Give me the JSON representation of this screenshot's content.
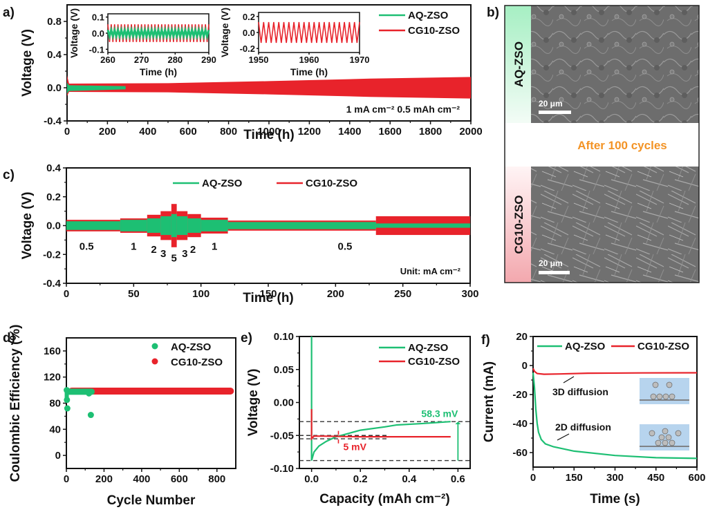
{
  "colors": {
    "aq": "#1dbf73",
    "cg": "#e8232b",
    "orange": "#f39325",
    "axis": "#111111",
    "dash": "#333333"
  },
  "chart_data": [
    {
      "id": "a",
      "panel_label": "a)",
      "type": "line",
      "title": "",
      "xlabel": "Time (h)",
      "ylabel": "Voltage (V)",
      "xlim": [
        0,
        2000
      ],
      "ylim": [
        -0.4,
        1.0
      ],
      "xticks": [
        "0",
        "200",
        "400",
        "600",
        "800",
        "1000",
        "1200",
        "1400",
        "1600",
        "1800",
        "2000"
      ],
      "yticks": [
        "-0.4",
        "0.0",
        "0.4",
        "0.8"
      ],
      "annotation": "1 mA cm⁻²  0.5 mAh cm⁻²",
      "legend": [
        "AQ-ZSO",
        "CG10-ZSO"
      ],
      "legend_position": "top-right",
      "series": [
        {
          "name": "AQ-ZSO",
          "envelope": [
            {
              "x": 0,
              "hi": 0.06,
              "lo": -0.07
            },
            {
              "x": 10,
              "hi": 0.03,
              "lo": -0.04
            },
            {
              "x": 280,
              "hi": 0.02,
              "lo": -0.02
            },
            {
              "x": 290,
              "hi": 0.02,
              "lo": -0.02
            }
          ]
        },
        {
          "name": "CG10-ZSO",
          "envelope": [
            {
              "x": 0,
              "hi": 0.15,
              "lo": -0.1
            },
            {
              "x": 10,
              "hi": 0.05,
              "lo": -0.05
            },
            {
              "x": 500,
              "hi": 0.055,
              "lo": -0.055
            },
            {
              "x": 1000,
              "hi": 0.08,
              "lo": -0.08
            },
            {
              "x": 1500,
              "hi": 0.11,
              "lo": -0.11
            },
            {
              "x": 2000,
              "hi": 0.13,
              "lo": -0.13
            }
          ]
        }
      ],
      "insets": [
        {
          "xlabel": "Time (h)",
          "ylabel": "Voltage (V)",
          "xlim": [
            260,
            290
          ],
          "ylim": [
            -0.12,
            0.12
          ],
          "xticks": [
            "260",
            "270",
            "280",
            "290"
          ],
          "yticks": [
            "-0.1",
            "0.0",
            "0.1"
          ],
          "series": [
            {
              "name": "CG10-ZSO",
              "amplitude": 0.055,
              "period_h": 1
            },
            {
              "name": "AQ-ZSO",
              "amplitude": 0.02,
              "period_h": 1
            }
          ]
        },
        {
          "xlabel": "Time (h)",
          "ylabel": "Voltage (V)",
          "xlim": [
            1950,
            1970
          ],
          "ylim": [
            -0.25,
            0.25
          ],
          "xticks": [
            "1950",
            "1960",
            "1970"
          ],
          "yticks": [
            "-0.2",
            "0.0",
            "0.2"
          ],
          "series": [
            {
              "name": "CG10-ZSO",
              "amplitude": 0.13,
              "period_h": 1
            }
          ]
        }
      ]
    },
    {
      "id": "b",
      "panel_label": "b)",
      "type": "image",
      "top_label": "AQ-ZSO",
      "bottom_label": "CG10-ZSO",
      "middle_text": "After 100 cycles",
      "scale_bar": "20 μm"
    },
    {
      "id": "c",
      "panel_label": "c)",
      "type": "line",
      "xlabel": "Time (h)",
      "ylabel": "Voltage (V)",
      "xlim": [
        0,
        300
      ],
      "ylim": [
        -0.4,
        0.4
      ],
      "xticks": [
        "0",
        "50",
        "100",
        "150",
        "200",
        "250",
        "300"
      ],
      "yticks": [
        "-0.4",
        "-0.2",
        "0.0",
        "0.2",
        "0.4"
      ],
      "legend": [
        "AQ-ZSO",
        "CG10-ZSO"
      ],
      "legend_position": "top-center",
      "annotation": "Unit: mA cm⁻²",
      "rate_labels": [
        {
          "text": "0.5",
          "x": 15,
          "y": -0.14
        },
        {
          "text": "1",
          "x": 50,
          "y": -0.14
        },
        {
          "text": "2",
          "x": 65,
          "y": -0.16
        },
        {
          "text": "3",
          "x": 72,
          "y": -0.19
        },
        {
          "text": "5",
          "x": 80,
          "y": -0.22
        },
        {
          "text": "3",
          "x": 88,
          "y": -0.19
        },
        {
          "text": "2",
          "x": 94,
          "y": -0.16
        },
        {
          "text": "1",
          "x": 110,
          "y": -0.14
        },
        {
          "text": "0.5",
          "x": 207,
          "y": -0.14
        }
      ],
      "series": [
        {
          "name": "CG10-ZSO",
          "segments": [
            {
              "x0": 0,
              "x1": 40,
              "amp": 0.04
            },
            {
              "x0": 40,
              "x1": 60,
              "amp": 0.05
            },
            {
              "x0": 60,
              "x1": 70,
              "amp": 0.075
            },
            {
              "x0": 70,
              "x1": 78,
              "amp": 0.1
            },
            {
              "x0": 78,
              "x1": 82,
              "amp": 0.15
            },
            {
              "x0": 82,
              "x1": 90,
              "amp": 0.1
            },
            {
              "x0": 90,
              "x1": 100,
              "amp": 0.08
            },
            {
              "x0": 100,
              "x1": 120,
              "amp": 0.055
            },
            {
              "x0": 120,
              "x1": 230,
              "amp": 0.035
            },
            {
              "x0": 230,
              "x1": 300,
              "amp": 0.065
            }
          ]
        },
        {
          "name": "AQ-ZSO",
          "segments": [
            {
              "x0": 0,
              "x1": 40,
              "amp": 0.03
            },
            {
              "x0": 40,
              "x1": 60,
              "amp": 0.04
            },
            {
              "x0": 60,
              "x1": 70,
              "amp": 0.05
            },
            {
              "x0": 70,
              "x1": 78,
              "amp": 0.065
            },
            {
              "x0": 78,
              "x1": 82,
              "amp": 0.08
            },
            {
              "x0": 82,
              "x1": 90,
              "amp": 0.065
            },
            {
              "x0": 90,
              "x1": 100,
              "amp": 0.05
            },
            {
              "x0": 100,
              "x1": 120,
              "amp": 0.04
            },
            {
              "x0": 120,
              "x1": 230,
              "amp": 0.025
            },
            {
              "x0": 230,
              "x1": 300,
              "amp": 0.015
            }
          ]
        }
      ]
    },
    {
      "id": "d",
      "panel_label": "d)",
      "type": "scatter",
      "xlabel": "Cycle Number",
      "ylabel": "Coulombic Efficiency (%)",
      "xlim": [
        0,
        900
      ],
      "ylim": [
        -20,
        180
      ],
      "xticks": [
        "0",
        "200",
        "400",
        "600",
        "800"
      ],
      "yticks": [
        "0",
        "40",
        "80",
        "120",
        "160"
      ],
      "legend": [
        "AQ-ZSO",
        "CG10-ZSO"
      ],
      "legend_position": "top-right",
      "series": [
        {
          "name": "CG10-ZSO",
          "x_range": [
            10,
            890
          ],
          "y": 98.5
        },
        {
          "name": "AQ-ZSO",
          "x_range": [
            1,
            150
          ],
          "y": 97,
          "outliers": [
            {
              "x": 5,
              "y": 72
            },
            {
              "x": 130,
              "y": 62
            },
            {
              "x": 120,
              "y": 95
            },
            {
              "x": 3,
              "y": 85
            },
            {
              "x": 2,
              "y": 100
            }
          ]
        }
      ]
    },
    {
      "id": "e",
      "panel_label": "e)",
      "type": "line",
      "xlabel": "Capacity (mAh cm⁻²)",
      "ylabel": "Voltage (V)",
      "xlim": [
        -0.05,
        0.65
      ],
      "ylim": [
        -0.1,
        0.1
      ],
      "xticks": [
        "0.0",
        "0.2",
        "0.4",
        "0.6"
      ],
      "yticks": [
        "-0.10",
        "-0.05",
        "0.00",
        "0.05",
        "0.10"
      ],
      "legend": [
        "AQ-ZSO",
        "CG10-ZSO"
      ],
      "legend_position": "top-right",
      "annotations": [
        {
          "text": "58.3 mV",
          "color": "aq"
        },
        {
          "text": "5 mV",
          "color": "cg"
        }
      ],
      "series": [
        {
          "name": "AQ-ZSO",
          "points": [
            [
              0,
              0.1
            ],
            [
              0,
              -0.088
            ],
            [
              0.01,
              -0.075
            ],
            [
              0.03,
              -0.066
            ],
            [
              0.06,
              -0.059
            ],
            [
              0.1,
              -0.052
            ],
            [
              0.15,
              -0.047
            ],
            [
              0.2,
              -0.042
            ],
            [
              0.3,
              -0.037
            ],
            [
              0.35,
              -0.034
            ],
            [
              0.45,
              -0.032
            ],
            [
              0.57,
              -0.029
            ]
          ]
        },
        {
          "name": "CG10-ZSO",
          "points": [
            [
              0,
              -0.01
            ],
            [
              0,
              -0.055
            ],
            [
              0.01,
              -0.051
            ],
            [
              0.05,
              -0.051
            ],
            [
              0.2,
              -0.052
            ],
            [
              0.4,
              -0.052
            ],
            [
              0.57,
              -0.052
            ]
          ]
        }
      ],
      "reference_lines": [
        -0.029,
        -0.05,
        -0.055,
        -0.088
      ]
    },
    {
      "id": "f",
      "panel_label": "f)",
      "type": "line",
      "xlabel": "Time (s)",
      "ylabel": "Current (mA)",
      "xlim": [
        0,
        600
      ],
      "ylim": [
        -70,
        20
      ],
      "xticks": [
        "0",
        "150",
        "300",
        "450",
        "600"
      ],
      "yticks": [
        "-60",
        "-40",
        "-20",
        "0",
        "20"
      ],
      "legend": [
        "AQ-ZSO",
        "CG10-ZSO"
      ],
      "legend_position": "top",
      "annotations": [
        "3D diffusion",
        "2D diffusion"
      ],
      "series": [
        {
          "name": "AQ-ZSO",
          "points": [
            [
              0,
              -5
            ],
            [
              5,
              -15
            ],
            [
              10,
              -30
            ],
            [
              15,
              -40
            ],
            [
              20,
              -46
            ],
            [
              30,
              -51
            ],
            [
              45,
              -54
            ],
            [
              75,
              -56
            ],
            [
              150,
              -59
            ],
            [
              300,
              -62
            ],
            [
              450,
              -63.5
            ],
            [
              600,
              -64
            ]
          ]
        },
        {
          "name": "CG10-ZSO",
          "points": [
            [
              0,
              -2
            ],
            [
              5,
              -4
            ],
            [
              15,
              -5.5
            ],
            [
              40,
              -6
            ],
            [
              100,
              -5.8
            ],
            [
              200,
              -5.3
            ],
            [
              400,
              -5.1
            ],
            [
              600,
              -5
            ]
          ]
        }
      ]
    }
  ]
}
